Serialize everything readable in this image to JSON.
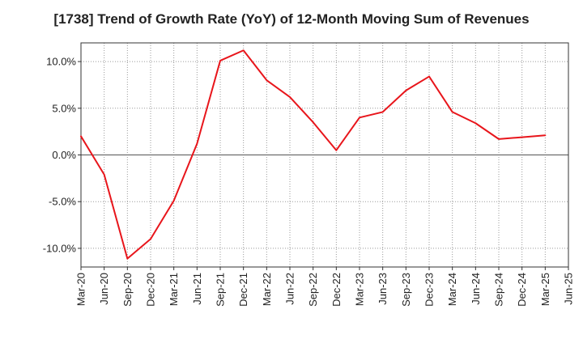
{
  "chart_data": {
    "type": "line",
    "title": "[1738]  Trend of Growth Rate (YoY) of 12-Month Moving Sum of Revenues",
    "xlabel": "",
    "ylabel": "",
    "x": [
      "Mar-20",
      "Jun-20",
      "Sep-20",
      "Dec-20",
      "Mar-21",
      "Jun-21",
      "Sep-21",
      "Dec-21",
      "Mar-22",
      "Jun-22",
      "Sep-22",
      "Dec-22",
      "Mar-23",
      "Jun-23",
      "Sep-23",
      "Dec-23",
      "Mar-24",
      "Jun-24",
      "Sep-24",
      "Dec-24",
      "Mar-25",
      "Jun-25"
    ],
    "series": [
      {
        "color": "#e8151b",
        "values": [
          2.0,
          -2.1,
          -11.1,
          -9.0,
          -4.9,
          1.2,
          10.1,
          11.2,
          8.0,
          6.2,
          3.5,
          0.5,
          4.0,
          4.6,
          6.9,
          8.4,
          4.6,
          3.4,
          1.7,
          1.9,
          2.1,
          null
        ]
      }
    ],
    "ylim": [
      -12,
      12
    ],
    "yticks": [
      -10,
      -5,
      0,
      5,
      10
    ],
    "ytick_labels": [
      "-10.0%",
      "-5.0%",
      "0.0%",
      "5.0%",
      "10.0%"
    ],
    "grid": true,
    "legend": "none"
  }
}
